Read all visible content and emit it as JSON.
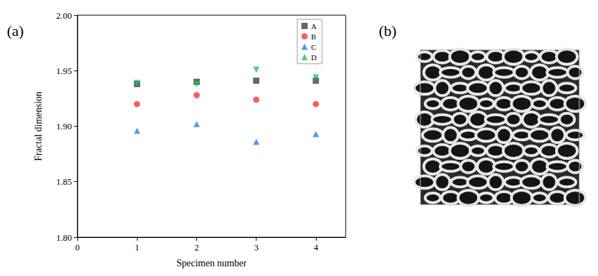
{
  "panel_labels": [
    "(a)",
    "(b)"
  ],
  "chart_data": {
    "type": "scatter",
    "x_label": "Specimen number",
    "y_label": "Fractal dimension",
    "x": [
      1,
      2,
      3,
      4
    ],
    "series": [
      {
        "name": "A",
        "color": "#404040",
        "marker": "square",
        "values": [
          1.938,
          1.94,
          1.941,
          1.941
        ]
      },
      {
        "name": "B",
        "color": "#ff3333",
        "marker": "circle",
        "values": [
          1.92,
          1.928,
          1.924,
          1.92
        ]
      },
      {
        "name": "C",
        "color": "#1f7fff",
        "marker": "triangle",
        "values": [
          1.896,
          1.902,
          1.886,
          1.893
        ]
      },
      {
        "name": "D",
        "color": "#19c264",
        "marker": "triangle_down",
        "values": [
          1.939,
          1.938,
          1.951,
          1.944
        ]
      }
    ],
    "xlim": [
      0,
      4.5
    ],
    "xticks": [
      0,
      1,
      2,
      3,
      4
    ],
    "ylim": [
      1.8,
      2.0
    ],
    "yticks": [
      {
        "value": 1.8,
        "label": "1.80"
      },
      1.85,
      {
        "value": 1.9,
        "label": "1.90"
      },
      1.95,
      {
        "value": 2.0,
        "label": "2.00"
      }
    ],
    "grid": false,
    "legend": "upper right"
  }
}
